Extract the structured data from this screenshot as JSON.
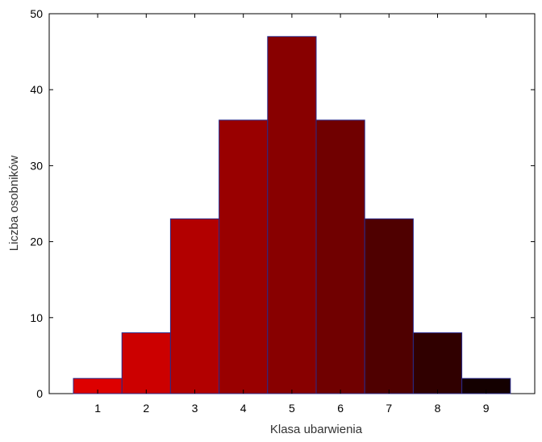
{
  "chart_data": {
    "type": "bar",
    "title": "",
    "xlabel": "Klasa ubarwienia",
    "ylabel": "Liczba osobników",
    "categories": [
      "1",
      "2",
      "3",
      "4",
      "5",
      "6",
      "7",
      "8",
      "9"
    ],
    "values": [
      2,
      8,
      23,
      36,
      47,
      36,
      23,
      8,
      2
    ],
    "ylim": [
      0,
      50
    ],
    "yticks": [
      "0",
      "10",
      "20",
      "30",
      "40",
      "50"
    ],
    "grid": false,
    "legend": "none",
    "colors": {
      "bars": [
        "#dd0000",
        "#cc0000",
        "#b20000",
        "#990000",
        "#880000",
        "#700000",
        "#4f0000",
        "#300000",
        "#140000"
      ],
      "bar_border": "#2a2a8a",
      "axis": "#000000"
    }
  }
}
